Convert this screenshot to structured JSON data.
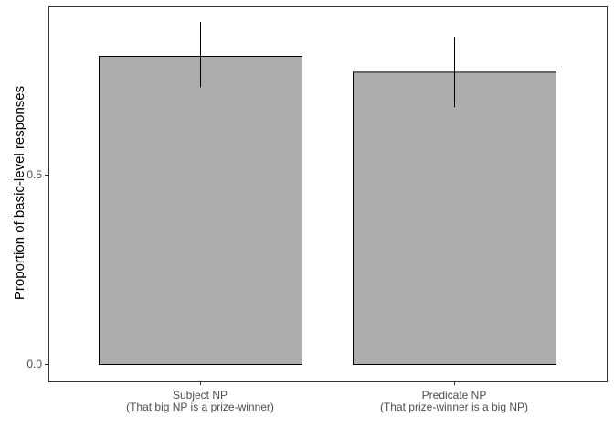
{
  "chart_data": {
    "type": "bar",
    "title": "",
    "xlabel": "",
    "ylabel": "Proportion of basic-level responses",
    "ylim": [
      -0.03,
      0.9
    ],
    "yticks": [
      "0.0",
      "0.5"
    ],
    "ytick_values": [
      0.0,
      0.5
    ],
    "grid": false,
    "categories": [
      [
        "Subject NP",
        "(That big NP is a prize-winner)"
      ],
      [
        "Predicate NP",
        "(That prize-winner is a big NP)"
      ]
    ],
    "values": [
      0.814,
      0.772
    ],
    "error_low": [
      0.731,
      0.678
    ],
    "error_high": [
      0.903,
      0.864
    ],
    "colors": {
      "bar_fill": "#adadad",
      "bar_stroke": "#000000",
      "panel_border": "#333333",
      "tick_text": "#4d4d4d"
    }
  }
}
